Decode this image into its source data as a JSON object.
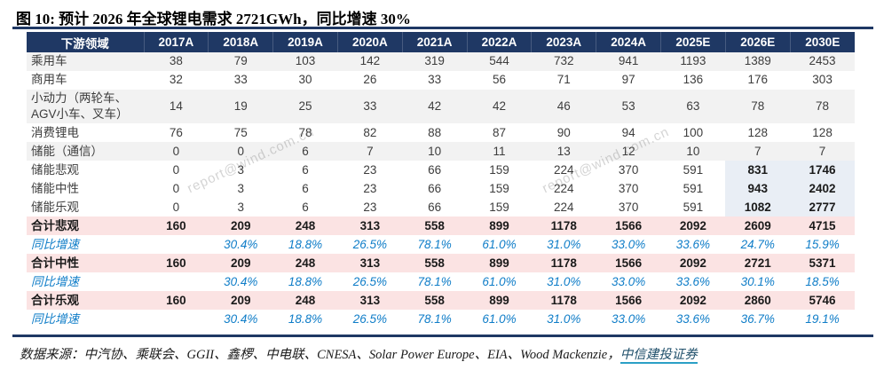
{
  "title": "图 10: 预计 2026 年全球锂电需求 2721GWh，同比增速 30%",
  "watermark": "report@wind.com.cn",
  "colors": {
    "header_bg": "#1f3864",
    "rule": "#1f3864",
    "stripe_bg": "#f2f2f2",
    "total_bg": "#fbe3e3",
    "forecast_highlight_bg": "#e9eef5",
    "growth_text": "#0f7dc8",
    "link_underline": "#2ba0c6"
  },
  "table": {
    "header": [
      "下游领域",
      "2017A",
      "2018A",
      "2019A",
      "2020A",
      "2021A",
      "2022A",
      "2023A",
      "2024A",
      "2025E",
      "2026E",
      "2030E"
    ],
    "rows": [
      {
        "label": "乘用车",
        "type": "stripe",
        "values": [
          "38",
          "79",
          "103",
          "142",
          "319",
          "544",
          "732",
          "941",
          "1193",
          "1389",
          "2453"
        ]
      },
      {
        "label": "商用车",
        "type": "plain",
        "values": [
          "32",
          "33",
          "30",
          "26",
          "33",
          "56",
          "71",
          "97",
          "136",
          "176",
          "303"
        ]
      },
      {
        "label": "小动力（两轮车、AGV小车、叉车）",
        "type": "stripe",
        "values": [
          "14",
          "19",
          "25",
          "33",
          "42",
          "42",
          "46",
          "53",
          "63",
          "78",
          "78"
        ]
      },
      {
        "label": "消费锂电",
        "type": "plain",
        "values": [
          "76",
          "75",
          "78",
          "82",
          "88",
          "87",
          "90",
          "94",
          "100",
          "128",
          "128"
        ]
      },
      {
        "label": "储能（通信）",
        "type": "stripe",
        "values": [
          "0",
          "0",
          "6",
          "7",
          "10",
          "11",
          "13",
          "12",
          "10",
          "7",
          "7"
        ]
      },
      {
        "label": "储能悲观",
        "type": "storage",
        "values": [
          "0",
          "3",
          "6",
          "23",
          "66",
          "159",
          "224",
          "370",
          "591",
          "831",
          "1746"
        ]
      },
      {
        "label": "储能中性",
        "type": "storage",
        "values": [
          "0",
          "3",
          "6",
          "23",
          "66",
          "159",
          "224",
          "370",
          "591",
          "943",
          "2402"
        ]
      },
      {
        "label": "储能乐观",
        "type": "storage",
        "values": [
          "0",
          "3",
          "6",
          "23",
          "66",
          "159",
          "224",
          "370",
          "591",
          "1082",
          "2777"
        ]
      },
      {
        "label": "合计悲观",
        "type": "total",
        "values": [
          "160",
          "209",
          "248",
          "313",
          "558",
          "899",
          "1178",
          "1566",
          "2092",
          "2609",
          "4715"
        ]
      },
      {
        "label": "同比增速",
        "type": "growth",
        "values": [
          "",
          "30.4%",
          "18.8%",
          "26.5%",
          "78.1%",
          "61.0%",
          "31.0%",
          "33.0%",
          "33.6%",
          "24.7%",
          "15.9%"
        ]
      },
      {
        "label": "合计中性",
        "type": "total",
        "values": [
          "160",
          "209",
          "248",
          "313",
          "558",
          "899",
          "1178",
          "1566",
          "2092",
          "2721",
          "5371"
        ]
      },
      {
        "label": "同比增速",
        "type": "growth",
        "values": [
          "",
          "30.4%",
          "18.8%",
          "26.5%",
          "78.1%",
          "61.0%",
          "31.0%",
          "33.0%",
          "33.6%",
          "30.1%",
          "18.5%"
        ]
      },
      {
        "label": "合计乐观",
        "type": "total",
        "values": [
          "160",
          "209",
          "248",
          "313",
          "558",
          "899",
          "1178",
          "1566",
          "2092",
          "2860",
          "5746"
        ]
      },
      {
        "label": "同比增速",
        "type": "growth",
        "values": [
          "",
          "30.4%",
          "18.8%",
          "26.5%",
          "78.1%",
          "61.0%",
          "31.0%",
          "33.0%",
          "33.6%",
          "36.7%",
          "19.1%"
        ]
      }
    ]
  },
  "footer": {
    "prefix": "数据来源：中汽协、乘联会、GGII、鑫椤、中电联、CNESA、Solar Power Europe、EIA、Wood Mackenzie，",
    "link": "中信建投证券"
  }
}
